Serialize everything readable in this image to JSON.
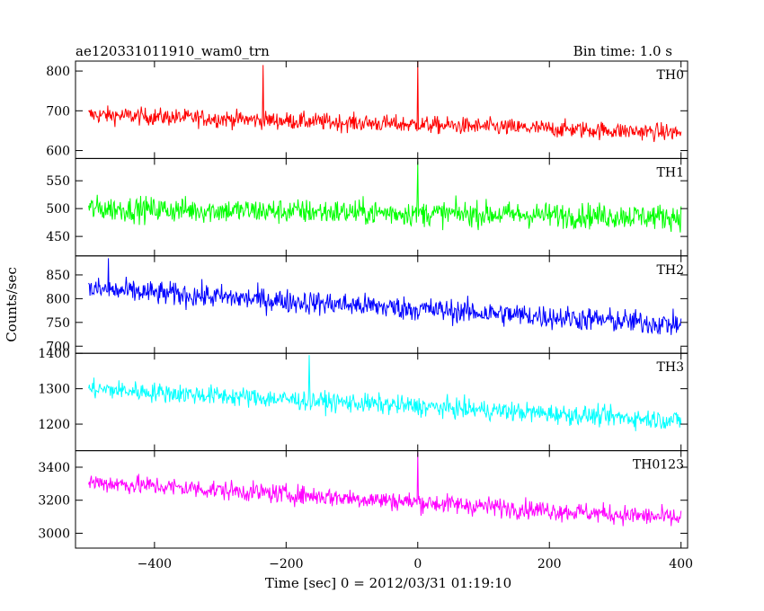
{
  "header": {
    "title": "ae120331011910_wam0_trn",
    "bin_time": "Bin time: 1.0 s"
  },
  "chart_data": {
    "type": "line",
    "title": "ae120331011910_wam0_trn",
    "xlabel": "Time [sec] 0 = 2012/03/31 01:19:10",
    "ylabel": "Counts/sec",
    "xlim": [
      -520,
      410
    ],
    "x_ticks": [
      -400,
      -200,
      0,
      200,
      400
    ],
    "x_range": [
      -500,
      400
    ],
    "grid": false,
    "legend": "none",
    "panels": [
      {
        "name": "TH0",
        "color": "#ff0000",
        "ylim": [
          580,
          825
        ],
        "y_ticks": [
          600,
          700,
          800
        ],
        "trend_start": 690,
        "trend_end": 645,
        "noise": 26,
        "spikes": [
          {
            "x": -235,
            "y": 815
          },
          {
            "x": 0,
            "y": 825
          }
        ]
      },
      {
        "name": "TH1",
        "color": "#00ff00",
        "ylim": [
          415,
          590
        ],
        "y_ticks": [
          450,
          500,
          550
        ],
        "trend_start": 500,
        "trend_end": 485,
        "noise": 27,
        "spikes": [
          {
            "x": 0,
            "y": 585
          }
        ]
      },
      {
        "name": "TH2",
        "color": "#0000ff",
        "ylim": [
          685,
          890
        ],
        "y_ticks": [
          700,
          750,
          800,
          850
        ],
        "trend_start": 820,
        "trend_end": 745,
        "noise": 30,
        "spikes": [
          {
            "x": -470,
            "y": 885
          }
        ]
      },
      {
        "name": "TH3",
        "color": "#00ffff",
        "ylim": [
          1125,
          1400
        ],
        "y_ticks": [
          1200,
          1300,
          1400
        ],
        "trend_start": 1300,
        "trend_end": 1210,
        "noise": 33,
        "spikes": [
          {
            "x": -165,
            "y": 1395
          }
        ]
      },
      {
        "name": "TH0123",
        "color": "#ff00ff",
        "ylim": [
          2910,
          3500
        ],
        "y_ticks": [
          3000,
          3200,
          3400
        ],
        "trend_start": 3310,
        "trend_end": 3090,
        "noise": 70,
        "spikes": [
          {
            "x": 0,
            "y": 3490
          }
        ]
      }
    ]
  }
}
